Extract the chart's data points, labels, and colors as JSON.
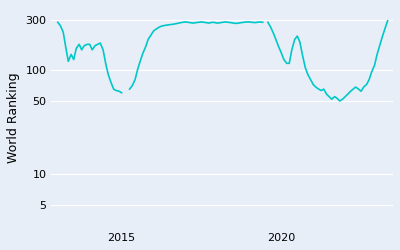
{
  "ylabel": "World Ranking",
  "line_color": "#00c8c8",
  "background_color": "#e8eef8",
  "line_width": 1.2,
  "x_ticks": [
    2015,
    2020
  ],
  "y_ticks": [
    5,
    10,
    50,
    100,
    300
  ],
  "ylim_log": [
    3,
    400
  ],
  "xlim": [
    2012.8,
    2023.5
  ],
  "segments": [
    {
      "dates": [
        2013.0,
        2013.08,
        2013.17,
        2013.25,
        2013.33,
        2013.42,
        2013.5,
        2013.58,
        2013.67,
        2013.75,
        2013.83,
        2013.92,
        2014.0,
        2014.08,
        2014.17,
        2014.25,
        2014.33,
        2014.42,
        2014.5,
        2014.58,
        2014.67,
        2014.75,
        2014.83,
        2014.92,
        2015.0
      ],
      "rankings": [
        285,
        265,
        230,
        165,
        120,
        140,
        125,
        160,
        175,
        155,
        170,
        175,
        175,
        155,
        170,
        175,
        180,
        155,
        115,
        90,
        75,
        65,
        63,
        62,
        60
      ]
    },
    {
      "dates": [
        2015.25,
        2015.33,
        2015.42,
        2015.5,
        2015.58,
        2015.67,
        2015.75,
        2015.83,
        2015.92,
        2016.0,
        2016.08,
        2016.17,
        2016.25,
        2016.33,
        2016.42,
        2016.5,
        2016.58,
        2016.67,
        2016.75,
        2016.83,
        2016.92,
        2017.0,
        2017.08,
        2017.17,
        2017.25,
        2017.33,
        2017.42,
        2017.5,
        2017.58,
        2017.67,
        2017.75,
        2017.83,
        2017.92,
        2018.0,
        2018.08,
        2018.17,
        2018.25,
        2018.33,
        2018.42,
        2018.5,
        2018.58,
        2018.67,
        2018.75,
        2018.83,
        2018.92,
        2019.0,
        2019.08,
        2019.17,
        2019.25,
        2019.33,
        2019.42
      ],
      "rankings": [
        65,
        70,
        80,
        100,
        120,
        145,
        165,
        195,
        215,
        235,
        245,
        255,
        262,
        265,
        268,
        270,
        272,
        275,
        278,
        282,
        285,
        287,
        285,
        282,
        280,
        283,
        285,
        287,
        285,
        282,
        280,
        285,
        283,
        280,
        282,
        285,
        287,
        285,
        283,
        280,
        278,
        280,
        283,
        285,
        287,
        287,
        285,
        283,
        285,
        287,
        285
      ]
    },
    {
      "dates": [
        2019.58,
        2019.67,
        2019.75,
        2019.83,
        2019.92,
        2020.0,
        2020.08,
        2020.17,
        2020.25,
        2020.33,
        2020.42,
        2020.5,
        2020.58,
        2020.67,
        2020.75,
        2020.83,
        2020.92,
        2021.0,
        2021.08,
        2021.17,
        2021.25,
        2021.33,
        2021.42,
        2021.5,
        2021.58,
        2021.67,
        2021.75,
        2021.83,
        2021.92,
        2022.0,
        2022.08,
        2022.17,
        2022.25,
        2022.33,
        2022.42,
        2022.5,
        2022.58,
        2022.67,
        2022.75,
        2022.83,
        2022.92,
        2023.0,
        2023.17,
        2023.33
      ],
      "rankings": [
        285,
        255,
        225,
        195,
        165,
        145,
        125,
        115,
        115,
        155,
        195,
        210,
        185,
        135,
        105,
        90,
        80,
        72,
        68,
        65,
        63,
        65,
        58,
        55,
        52,
        55,
        53,
        50,
        52,
        55,
        58,
        62,
        65,
        68,
        65,
        62,
        68,
        72,
        80,
        95,
        110,
        140,
        210,
        295
      ]
    }
  ]
}
